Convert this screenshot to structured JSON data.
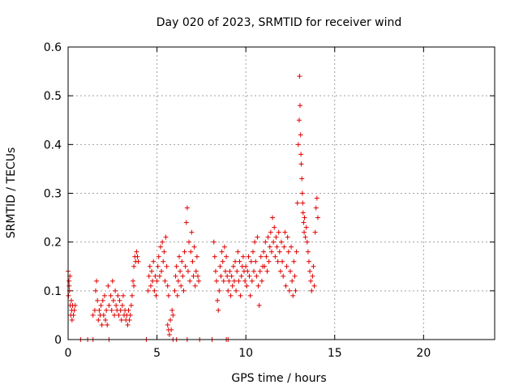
{
  "chart_data": {
    "type": "scatter",
    "title": "Day 020 of 2023, SRMTID for receiver wind",
    "xlabel": "GPS time / hours",
    "ylabel": "SRMTID / TECUs",
    "xlim": [
      0,
      24
    ],
    "ylim": [
      0,
      0.6
    ],
    "xticks": [
      0,
      5,
      10,
      15,
      20
    ],
    "yticks": [
      0,
      0.1,
      0.2,
      0.3,
      0.4,
      0.5,
      0.6
    ],
    "xtick_labels": [
      "0",
      "5",
      "10",
      "15",
      "20"
    ],
    "ytick_labels": [
      "0",
      "0.1",
      "0.2",
      "0.3",
      "0.4",
      "0.5",
      "0.6"
    ],
    "grid": true,
    "marker": "+",
    "series": [
      {
        "name": "SRMTID",
        "color": "#e00000",
        "points": [
          [
            0.0,
            0.14
          ],
          [
            0.05,
            0.12
          ],
          [
            0.08,
            0.1
          ],
          [
            0.1,
            0.13
          ],
          [
            0.12,
            0.07
          ],
          [
            0.15,
            0.05
          ],
          [
            0.18,
            0.08
          ],
          [
            0.2,
            0.06
          ],
          [
            0.22,
            0.04
          ],
          [
            0.25,
            0.07
          ],
          [
            0.3,
            0.05
          ],
          [
            0.35,
            0.06
          ],
          [
            0.4,
            0.07
          ],
          [
            0.02,
            0.09
          ],
          [
            0.06,
            0.11
          ],
          [
            1.4,
            0.05
          ],
          [
            1.5,
            0.06
          ],
          [
            1.55,
            0.1
          ],
          [
            1.6,
            0.12
          ],
          [
            1.65,
            0.08
          ],
          [
            1.7,
            0.04
          ],
          [
            1.75,
            0.06
          ],
          [
            1.8,
            0.05
          ],
          [
            1.85,
            0.07
          ],
          [
            1.9,
            0.03
          ],
          [
            1.95,
            0.08
          ],
          [
            2.0,
            0.05
          ],
          [
            2.05,
            0.09
          ],
          [
            2.1,
            0.04
          ],
          [
            2.15,
            0.06
          ],
          [
            2.2,
            0.03
          ],
          [
            2.25,
            0.11
          ],
          [
            2.3,
            0.07
          ],
          [
            2.4,
            0.09
          ],
          [
            2.45,
            0.06
          ],
          [
            2.5,
            0.12
          ],
          [
            2.55,
            0.08
          ],
          [
            2.6,
            0.05
          ],
          [
            2.65,
            0.1
          ],
          [
            2.7,
            0.07
          ],
          [
            2.75,
            0.06
          ],
          [
            2.8,
            0.09
          ],
          [
            2.85,
            0.05
          ],
          [
            2.9,
            0.08
          ],
          [
            2.95,
            0.06
          ],
          [
            3.0,
            0.04
          ],
          [
            3.05,
            0.07
          ],
          [
            3.1,
            0.09
          ],
          [
            3.15,
            0.05
          ],
          [
            3.2,
            0.06
          ],
          [
            3.25,
            0.04
          ],
          [
            3.3,
            0.05
          ],
          [
            3.35,
            0.03
          ],
          [
            3.4,
            0.06
          ],
          [
            3.45,
            0.04
          ],
          [
            3.5,
            0.05
          ],
          [
            3.55,
            0.07
          ],
          [
            3.6,
            0.09
          ],
          [
            3.65,
            0.12
          ],
          [
            3.7,
            0.15
          ],
          [
            3.75,
            0.17
          ],
          [
            3.8,
            0.16
          ],
          [
            3.85,
            0.18
          ],
          [
            3.9,
            0.17
          ],
          [
            3.95,
            0.16
          ],
          [
            3.7,
            0.11
          ],
          [
            4.5,
            0.1
          ],
          [
            4.55,
            0.13
          ],
          [
            4.6,
            0.15
          ],
          [
            4.65,
            0.11
          ],
          [
            4.7,
            0.14
          ],
          [
            4.75,
            0.12
          ],
          [
            4.8,
            0.16
          ],
          [
            4.85,
            0.1
          ],
          [
            4.9,
            0.13
          ],
          [
            4.95,
            0.09
          ],
          [
            5.0,
            0.12
          ],
          [
            5.05,
            0.15
          ],
          [
            5.1,
            0.17
          ],
          [
            5.15,
            0.13
          ],
          [
            5.2,
            0.19
          ],
          [
            5.25,
            0.14
          ],
          [
            5.3,
            0.2
          ],
          [
            5.35,
            0.16
          ],
          [
            5.4,
            0.18
          ],
          [
            5.45,
            0.12
          ],
          [
            5.5,
            0.21
          ],
          [
            5.55,
            0.15
          ],
          [
            5.6,
            0.11
          ],
          [
            5.65,
            0.09
          ],
          [
            5.6,
            0.03
          ],
          [
            5.65,
            0.02
          ],
          [
            5.7,
            0.01
          ],
          [
            5.75,
            0.04
          ],
          [
            5.8,
            0.02
          ],
          [
            5.85,
            0.06
          ],
          [
            5.9,
            0.05
          ],
          [
            6.0,
            0.1
          ],
          [
            6.05,
            0.13
          ],
          [
            6.1,
            0.15
          ],
          [
            6.15,
            0.09
          ],
          [
            6.2,
            0.12
          ],
          [
            6.25,
            0.17
          ],
          [
            6.3,
            0.14
          ],
          [
            6.35,
            0.11
          ],
          [
            6.4,
            0.16
          ],
          [
            6.45,
            0.13
          ],
          [
            6.5,
            0.1
          ],
          [
            6.55,
            0.18
          ],
          [
            6.6,
            0.15
          ],
          [
            6.65,
            0.24
          ],
          [
            6.7,
            0.27
          ],
          [
            6.75,
            0.14
          ],
          [
            6.8,
            0.2
          ],
          [
            6.85,
            0.12
          ],
          [
            6.9,
            0.18
          ],
          [
            6.95,
            0.22
          ],
          [
            7.0,
            0.16
          ],
          [
            7.05,
            0.13
          ],
          [
            7.1,
            0.19
          ],
          [
            7.15,
            0.11
          ],
          [
            7.2,
            0.14
          ],
          [
            7.25,
            0.17
          ],
          [
            7.3,
            0.13
          ],
          [
            7.35,
            0.12
          ],
          [
            8.2,
            0.2
          ],
          [
            8.25,
            0.17
          ],
          [
            8.3,
            0.14
          ],
          [
            8.35,
            0.12
          ],
          [
            8.4,
            0.08
          ],
          [
            8.45,
            0.06
          ],
          [
            8.5,
            0.1
          ],
          [
            8.55,
            0.15
          ],
          [
            8.6,
            0.13
          ],
          [
            8.65,
            0.18
          ],
          [
            8.7,
            0.16
          ],
          [
            8.75,
            0.12
          ],
          [
            8.8,
            0.19
          ],
          [
            8.85,
            0.14
          ],
          [
            8.9,
            0.17
          ],
          [
            8.95,
            0.13
          ],
          [
            9.0,
            0.1
          ],
          [
            9.05,
            0.12
          ],
          [
            9.1,
            0.14
          ],
          [
            9.15,
            0.09
          ],
          [
            9.2,
            0.13
          ],
          [
            9.25,
            0.11
          ],
          [
            9.3,
            0.15
          ],
          [
            9.35,
            0.12
          ],
          [
            9.4,
            0.16
          ],
          [
            9.45,
            0.1
          ],
          [
            9.5,
            0.14
          ],
          [
            9.55,
            0.18
          ],
          [
            9.6,
            0.12
          ],
          [
            9.65,
            0.16
          ],
          [
            9.7,
            0.09
          ],
          [
            9.75,
            0.13
          ],
          [
            9.8,
            0.15
          ],
          [
            9.85,
            0.17
          ],
          [
            9.9,
            0.14
          ],
          [
            9.95,
            0.12
          ],
          [
            10.0,
            0.15
          ],
          [
            10.05,
            0.11
          ],
          [
            10.1,
            0.14
          ],
          [
            10.15,
            0.17
          ],
          [
            10.2,
            0.13
          ],
          [
            10.25,
            0.09
          ],
          [
            10.3,
            0.16
          ],
          [
            10.35,
            0.12
          ],
          [
            10.4,
            0.18
          ],
          [
            10.45,
            0.14
          ],
          [
            10.5,
            0.2
          ],
          [
            10.55,
            0.16
          ],
          [
            10.6,
            0.13
          ],
          [
            10.65,
            0.21
          ],
          [
            10.7,
            0.11
          ],
          [
            10.75,
            0.07
          ],
          [
            10.8,
            0.14
          ],
          [
            10.85,
            0.17
          ],
          [
            10.9,
            0.12
          ],
          [
            10.95,
            0.15
          ],
          [
            11.0,
            0.18
          ],
          [
            11.05,
            0.15
          ],
          [
            11.1,
            0.2
          ],
          [
            11.15,
            0.17
          ],
          [
            11.2,
            0.14
          ],
          [
            11.25,
            0.21
          ],
          [
            11.3,
            0.16
          ],
          [
            11.35,
            0.19
          ],
          [
            11.4,
            0.22
          ],
          [
            11.45,
            0.18
          ],
          [
            11.5,
            0.25
          ],
          [
            11.55,
            0.2
          ],
          [
            11.6,
            0.23
          ],
          [
            11.65,
            0.17
          ],
          [
            11.7,
            0.21
          ],
          [
            11.75,
            0.19
          ],
          [
            11.8,
            0.16
          ],
          [
            11.85,
            0.22
          ],
          [
            11.9,
            0.18
          ],
          [
            11.95,
            0.14
          ],
          [
            12.0,
            0.2
          ],
          [
            12.05,
            0.16
          ],
          [
            12.1,
            0.13
          ],
          [
            12.15,
            0.19
          ],
          [
            12.2,
            0.22
          ],
          [
            12.25,
            0.11
          ],
          [
            12.3,
            0.15
          ],
          [
            12.35,
            0.21
          ],
          [
            12.4,
            0.18
          ],
          [
            12.45,
            0.1
          ],
          [
            12.5,
            0.14
          ],
          [
            12.55,
            0.19
          ],
          [
            12.6,
            0.12
          ],
          [
            12.65,
            0.09
          ],
          [
            12.7,
            0.16
          ],
          [
            12.75,
            0.13
          ],
          [
            12.8,
            0.1
          ],
          [
            12.85,
            0.18
          ],
          [
            12.9,
            0.28
          ],
          [
            12.95,
            0.4
          ],
          [
            13.0,
            0.45
          ],
          [
            13.02,
            0.54
          ],
          [
            13.05,
            0.48
          ],
          [
            13.08,
            0.42
          ],
          [
            13.1,
            0.38
          ],
          [
            13.12,
            0.36
          ],
          [
            13.15,
            0.33
          ],
          [
            13.18,
            0.3
          ],
          [
            13.2,
            0.28
          ],
          [
            13.22,
            0.26
          ],
          [
            13.25,
            0.24
          ],
          [
            13.28,
            0.22
          ],
          [
            13.3,
            0.25
          ],
          [
            13.35,
            0.21
          ],
          [
            13.4,
            0.23
          ],
          [
            13.45,
            0.2
          ],
          [
            13.5,
            0.18
          ],
          [
            13.55,
            0.16
          ],
          [
            13.6,
            0.14
          ],
          [
            13.65,
            0.12
          ],
          [
            13.7,
            0.1
          ],
          [
            13.75,
            0.13
          ],
          [
            13.8,
            0.15
          ],
          [
            13.85,
            0.11
          ],
          [
            13.9,
            0.22
          ],
          [
            13.95,
            0.27
          ],
          [
            14.0,
            0.29
          ],
          [
            14.05,
            0.25
          ],
          [
            0.7,
            0.0
          ],
          [
            1.1,
            0.0
          ],
          [
            1.4,
            0.0
          ],
          [
            2.3,
            0.0
          ],
          [
            4.4,
            0.0
          ],
          [
            5.9,
            0.0
          ],
          [
            6.1,
            0.0
          ],
          [
            6.7,
            0.0
          ],
          [
            7.4,
            0.0
          ],
          [
            8.1,
            0.0
          ],
          [
            8.9,
            0.0
          ],
          [
            9.0,
            0.0
          ]
        ]
      }
    ]
  }
}
